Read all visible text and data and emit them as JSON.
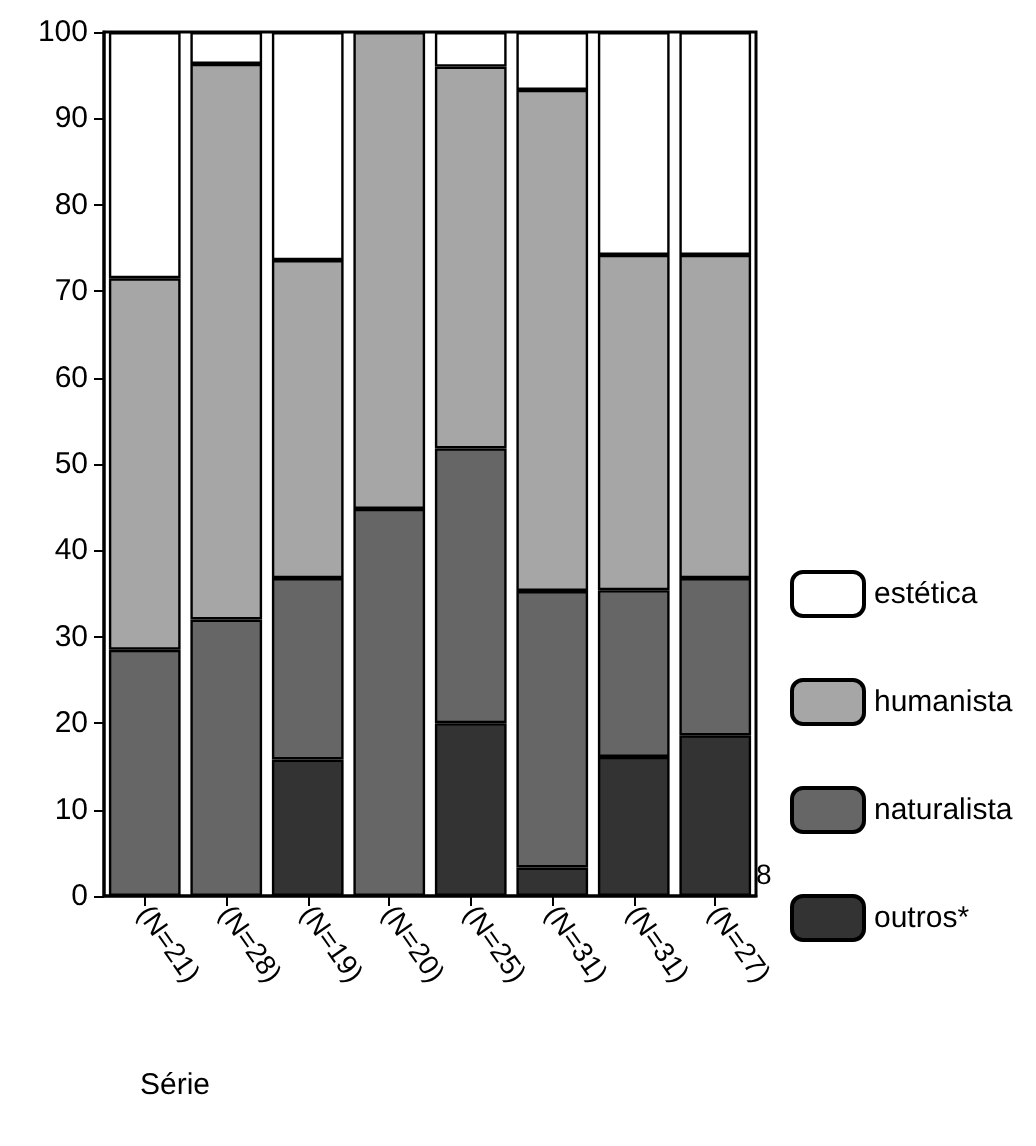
{
  "chart_data": {
    "type": "bar",
    "stacked": true,
    "xlabel": "Série",
    "categories": [
      "(N=21)",
      "(N=28)",
      "(N=19)",
      "(N=20)",
      "(N=25)",
      "(N=31)",
      "(N=31)",
      "(N=27)"
    ],
    "series": [
      {
        "name": "outros*",
        "color": "#333333",
        "values": [
          0,
          0,
          15.8,
          0,
          20,
          3.3,
          16.1,
          18.6
        ]
      },
      {
        "name": "naturalista",
        "color": "#666666",
        "values": [
          28.5,
          32,
          21,
          44.8,
          31.8,
          32,
          19.3,
          18.2
        ]
      },
      {
        "name": "humanista",
        "color": "#a6a6a6",
        "values": [
          43,
          64.3,
          36.8,
          55.2,
          44.2,
          58,
          38.8,
          37.4
        ]
      },
      {
        "name": "estética",
        "color": "#ffffff",
        "values": [
          28.5,
          3.7,
          26.4,
          0,
          4,
          6.7,
          25.8,
          25.8
        ]
      }
    ],
    "ylim": [
      0,
      100
    ],
    "yticks": [
      0,
      10,
      20,
      30,
      40,
      50,
      60,
      70,
      80,
      90,
      100
    ],
    "grid": false,
    "legend": "right",
    "annotations": [
      "8"
    ]
  }
}
